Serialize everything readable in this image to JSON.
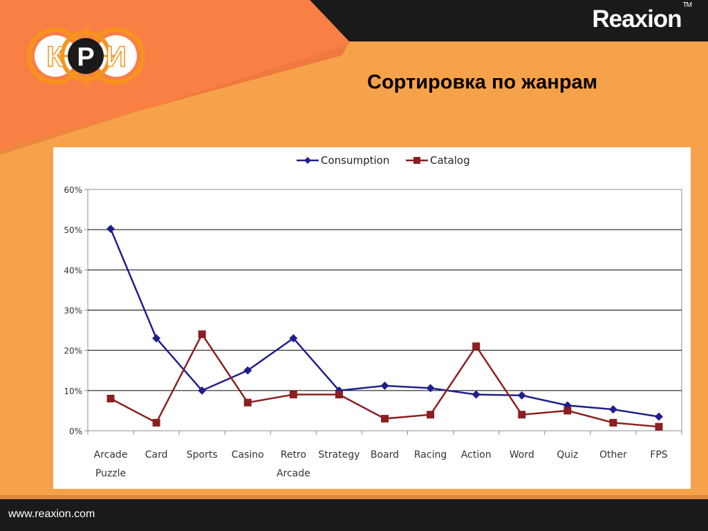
{
  "brand": {
    "name": "Reaxion",
    "tm": "TM"
  },
  "logo": {
    "letters": [
      "К",
      "Р",
      "И"
    ],
    "ring_color": "#f7941d",
    "center_fill": "#1a1a1a"
  },
  "slide": {
    "title": "Сортировка по жанрам"
  },
  "footer": {
    "url": "www.reaxion.com"
  },
  "colors": {
    "background": "#f6a24a",
    "band_dark": "#1a1a1a",
    "panel": "#ffffff"
  },
  "chart_data": {
    "type": "line",
    "title": "",
    "xlabel": "",
    "ylabel": "",
    "categories": [
      [
        "Arcade",
        "Puzzle"
      ],
      [
        "Card"
      ],
      [
        "Sports"
      ],
      [
        "Casino"
      ],
      [
        "Retro",
        "Arcade"
      ],
      [
        "Strategy"
      ],
      [
        "Board"
      ],
      [
        "Racing"
      ],
      [
        "Action"
      ],
      [
        "Word"
      ],
      [
        "Quiz"
      ],
      [
        "Other"
      ],
      [
        "FPS"
      ]
    ],
    "y_ticks": [
      "0%",
      "10%",
      "20%",
      "30%",
      "40%",
      "50%",
      "60%"
    ],
    "ylim": [
      0,
      60
    ],
    "grid": true,
    "legend_position": "top",
    "series": [
      {
        "name": "Consumption",
        "color": "#1f1f8c",
        "marker": "diamond",
        "values": [
          50.2,
          23,
          10,
          15,
          23,
          10,
          11.2,
          10.6,
          9,
          8.8,
          6.3,
          5.3,
          3.5
        ]
      },
      {
        "name": "Catalog",
        "color": "#8b1f1f",
        "marker": "square",
        "values": [
          8,
          2,
          24,
          7,
          9,
          9,
          3,
          4,
          21,
          4,
          5,
          2,
          1
        ]
      }
    ]
  }
}
